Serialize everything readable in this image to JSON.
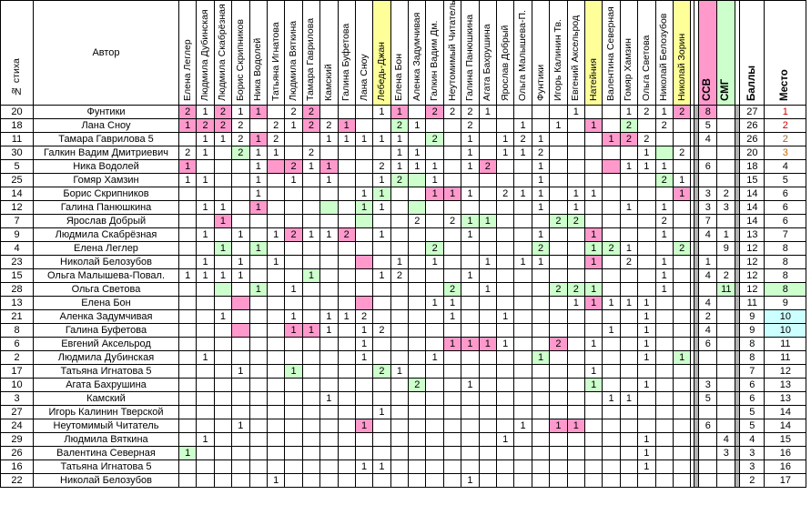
{
  "header": {
    "num_label": "№ стиха",
    "author_label": "Автор",
    "voters": [
      "Елена Леглер",
      "Людмила Дубинская",
      "Людмила Скабрёзная",
      "Борис Скрипников",
      "Ника Водолей",
      "Татьяна Игнатова",
      "Людмила Вяткина",
      "Тамара Гаврилова",
      "Камский",
      "Галина Буфетова",
      "Лана Сноу",
      "Лебедь-Джан",
      "Елена Бон",
      "Аленка Задумчивая",
      "Галкин Вадим Дм.",
      "Неутомимый Читатель",
      "Галина Панюшкина",
      "Агата Бахрушина",
      "Ярослав Добрый",
      "Ольга Малышева-П.",
      "Фунтики",
      "Игорь Калинин Тв.",
      "Евгений Аксельрод",
      "Натейния",
      "Валентина Северная",
      "Гомяр Хамзин",
      "Ольга Светова",
      "Николай Белозубов",
      "Николай Зорин"
    ],
    "ssv_label": "ССВ",
    "smg_label": "СМГ",
    "score_label": "Баллы",
    "place_label": "Место"
  },
  "colors": {
    "pink": "#ff99cc",
    "green": "#ccffcc",
    "yellow": "#ffff99",
    "stripe": "#b3b3b3",
    "place_gold": "#cc0000",
    "place_silver": "#996633",
    "place_bronze": "#cc6600",
    "place_blue": "#0000cc"
  },
  "rows": [
    {
      "num": "20",
      "author": "Фунтики",
      "v": [
        "2",
        "1",
        "2",
        "1",
        "1",
        "",
        "2",
        "2",
        "",
        "",
        "",
        "1",
        "1",
        "",
        "2",
        "2",
        "2",
        "1",
        "",
        "",
        "",
        "",
        "1",
        "",
        "",
        "1",
        "2",
        "1",
        "2"
      ],
      "ssv": "8",
      "smg": "",
      "score": "27",
      "place": "1",
      "hl": {
        "0": "p",
        "2": "p",
        "4": "p",
        "7": "p",
        "12": "p",
        "14": "p",
        "28": "p",
        "ssv": "p"
      },
      "pc": "gold"
    },
    {
      "num": "18",
      "author": "Лана Сноу",
      "v": [
        "1",
        "2",
        "2",
        "2",
        "",
        "2",
        "1",
        "2",
        "2",
        "1",
        "",
        "",
        "2",
        "1",
        "",
        "",
        "2",
        "",
        "",
        "1",
        "",
        "1",
        "",
        "1",
        "",
        "2",
        "",
        "2",
        ""
      ],
      "ssv": "5",
      "smg": "",
      "score": "26",
      "place": "2",
      "hl": {
        "0": "p",
        "1": "p",
        "2": "p",
        "7": "p",
        "9": "p",
        "12": "g",
        "23": "p",
        "25": "g"
      },
      "pc": "gold"
    },
    {
      "num": "11",
      "author": "Тамара Гаврилова 5",
      "v": [
        "",
        "1",
        "1",
        "2",
        "1",
        "2",
        "",
        "",
        "1",
        "1",
        "1",
        "1",
        "1",
        "",
        "2",
        "",
        "1",
        "",
        "1",
        "2",
        "1",
        "",
        "",
        "",
        "1",
        "2",
        "2",
        "",
        ""
      ],
      "ssv": "4",
      "smg": "",
      "score": "26",
      "place": "2",
      "hl": {
        "4": "p",
        "14": "g",
        "24": "p",
        "25": "p"
      },
      "pc": "silver"
    },
    {
      "num": "30",
      "author": "Галкин Вадим Дмитриевич",
      "v": [
        "2",
        "1",
        "",
        "2",
        "1",
        "1",
        "",
        "2",
        "",
        "",
        "",
        "",
        "1",
        "1",
        "",
        "",
        "1",
        "",
        "1",
        "1",
        "2",
        "",
        "",
        "",
        "",
        "",
        "1",
        "",
        "2"
      ],
      "ssv": "",
      "smg": "",
      "score": "20",
      "place": "3",
      "hl": {
        "3": "g",
        "27": "g"
      },
      "pc": "bronze"
    },
    {
      "num": "5",
      "author": "Ника Водолей",
      "v": [
        "1",
        "",
        "",
        "",
        "1",
        "",
        "2",
        "1",
        "1",
        "",
        "",
        "2",
        "1",
        "1",
        "1",
        "",
        "1",
        "2",
        "",
        "",
        "1",
        "",
        "",
        "",
        "",
        "1",
        "1",
        "1",
        ""
      ],
      "ssv": "6",
      "smg": "",
      "score": "18",
      "place": "4",
      "hl": {
        "0": "p",
        "5": "p",
        "6": "p",
        "8": "p",
        "17": "p",
        "24": "p"
      }
    },
    {
      "num": "25",
      "author": "Гомяр Хамзин",
      "v": [
        "1",
        "1",
        "",
        "",
        "1",
        "",
        "1",
        "",
        "1",
        "",
        "",
        "1",
        "2",
        "",
        "1",
        "",
        "",
        "",
        "",
        "",
        "1",
        "",
        "",
        "",
        "",
        "",
        "",
        "2",
        "1"
      ],
      "ssv": "",
      "smg": "",
      "score": "15",
      "place": "5",
      "hl": {
        "12": "g",
        "13": "g",
        "27": "g"
      }
    },
    {
      "num": "14",
      "author": "Борис Скрипников",
      "v": [
        "",
        "",
        "",
        "",
        "1",
        "",
        "",
        "",
        "",
        "",
        "1",
        "1",
        "",
        "",
        "1",
        "1",
        "1",
        "",
        "2",
        "1",
        "1",
        "",
        "1",
        "1",
        "",
        "",
        "",
        "",
        "1"
      ],
      "ssv": "3",
      "smg": "2",
      "score": "14",
      "place": "6",
      "hl": {
        "11": "g",
        "14": "p",
        "15": "p",
        "28": "p",
        "ssv": "w"
      }
    },
    {
      "num": "12",
      "author": "Галина Панюшкина",
      "v": [
        "",
        "1",
        "1",
        "",
        "1",
        "",
        "",
        "",
        "",
        "",
        "1",
        "1",
        "",
        "",
        "",
        "",
        "",
        "",
        "",
        "",
        "1",
        "",
        "1",
        "",
        "",
        "1",
        "",
        "1",
        ""
      ],
      "ssv": "3",
      "smg": "3",
      "score": "14",
      "place": "6",
      "hl": {
        "4": "p",
        "8": "g",
        "10": "g",
        "13": "g"
      }
    },
    {
      "num": "7",
      "author": "Ярослав Добрый",
      "v": [
        "",
        "",
        "1",
        "",
        "",
        "",
        "",
        "",
        "",
        "",
        "",
        "",
        "",
        "2",
        "",
        "2",
        "1",
        "1",
        "",
        "",
        "",
        "2",
        "2",
        "",
        "",
        "",
        "",
        "2",
        ""
      ],
      "ssv": "7",
      "smg": "",
      "score": "14",
      "place": "6",
      "hl": {
        "2": "p",
        "10": "g",
        "16": "g",
        "17": "g",
        "21": "g",
        "22": "g"
      }
    },
    {
      "num": "9",
      "author": "Людмила Скабрёзная",
      "v": [
        "",
        "1",
        "",
        "1",
        "",
        "1",
        "2",
        "1",
        "1",
        "2",
        "",
        "1",
        "",
        "",
        "",
        "",
        "1",
        "",
        "",
        "",
        "1",
        "",
        "",
        "1",
        "",
        "",
        "",
        "1",
        ""
      ],
      "ssv": "4",
      "smg": "1",
      "score": "13",
      "place": "7",
      "hl": {
        "6": "p",
        "9": "p",
        "23": "p"
      }
    },
    {
      "num": "4",
      "author": "Елена Леглер",
      "v": [
        "",
        "",
        "1",
        "",
        "1",
        "",
        "",
        "",
        "",
        "",
        "",
        "",
        "",
        "",
        "2",
        "",
        "",
        "",
        "",
        "",
        "2",
        "",
        "",
        "1",
        "2",
        "1",
        "",
        "",
        "2"
      ],
      "ssv": "",
      "smg": "9",
      "score": "12",
      "place": "8",
      "hl": {
        "2": "g",
        "4": "g",
        "14": "g",
        "20": "g",
        "23": "g",
        "24": "g",
        "28": "g"
      }
    },
    {
      "num": "23",
      "author": "Николай Белозубов",
      "v": [
        "",
        "1",
        "",
        "1",
        "",
        "1",
        "",
        "",
        "",
        "",
        "",
        "",
        "1",
        "",
        "1",
        "",
        "",
        "1",
        "",
        "1",
        "1",
        "",
        "",
        "1",
        "",
        "2",
        "",
        "1",
        ""
      ],
      "ssv": "1",
      "smg": "",
      "score": "12",
      "place": "8",
      "hl": {
        "10": "p",
        "23": "p"
      }
    },
    {
      "num": "15",
      "author": "Ольга Малышева-Повал.",
      "v": [
        "1",
        "1",
        "1",
        "1",
        "",
        "",
        "",
        "1",
        "",
        "",
        "",
        "1",
        "2",
        "",
        "",
        "",
        "1",
        "",
        "",
        "",
        "",
        "",
        "",
        "",
        "",
        "",
        "",
        "1",
        ""
      ],
      "ssv": "4",
      "smg": "2",
      "score": "12",
      "place": "8",
      "hl": {
        "7": "g"
      }
    },
    {
      "num": "28",
      "author": "Ольга Светова",
      "v": [
        "",
        "",
        "",
        "",
        "1",
        "",
        "1",
        "",
        "",
        "",
        "",
        "",
        "",
        "",
        "",
        "2",
        "",
        "1",
        "",
        "",
        "",
        "2",
        "2",
        "1",
        "",
        "",
        "",
        "1",
        ""
      ],
      "ssv": "",
      "smg": "11",
      "score": "12",
      "place": "8",
      "hl": {
        "2": "g",
        "4": "g",
        "15": "g",
        "21": "g",
        "22": "g",
        "23": "g",
        "smg": "g",
        "place": "g"
      }
    },
    {
      "num": "13",
      "author": "Елена Бон",
      "v": [
        "",
        "",
        "",
        "",
        "",
        "",
        "",
        "",
        "",
        "",
        "",
        "",
        "",
        "",
        "1",
        "1",
        "",
        "",
        "",
        "",
        "",
        "",
        "1",
        "1",
        "1",
        "1",
        "1",
        "",
        ""
      ],
      "ssv": "4",
      "smg": "",
      "score": "11",
      "place": "9",
      "hl": {
        "3": "p",
        "10": "p",
        "23": "p"
      }
    },
    {
      "num": "21",
      "author": "Аленка Задумчивая",
      "v": [
        "",
        "",
        "1",
        "",
        "",
        "",
        "1",
        "",
        "1",
        "1",
        "2",
        "",
        "",
        "",
        "",
        "1",
        "",
        "",
        "1",
        "",
        "",
        "",
        "",
        "",
        "",
        "",
        "1",
        "",
        ""
      ],
      "ssv": "2",
      "smg": "",
      "score": "9",
      "place": "10",
      "hl": {
        "place": "b"
      }
    },
    {
      "num": "8",
      "author": "Галина Буфетова",
      "v": [
        "",
        "",
        "",
        "",
        "",
        "",
        "1",
        "1",
        "1",
        "",
        "1",
        "2",
        "",
        "",
        "",
        "",
        "",
        "",
        "",
        "",
        "",
        "",
        "",
        "",
        "1",
        "",
        "1",
        "",
        ""
      ],
      "ssv": "4",
      "smg": "",
      "score": "9",
      "place": "10",
      "hl": {
        "3": "p",
        "6": "p",
        "7": "p",
        "place": "b"
      }
    },
    {
      "num": "6",
      "author": "Евгений Аксельрод",
      "v": [
        "",
        "",
        "",
        "",
        "",
        "",
        "",
        "",
        "",
        "",
        "1",
        "",
        "",
        "",
        "",
        "1",
        "1",
        "1",
        "1",
        "",
        "",
        "2",
        "",
        "1",
        "",
        "",
        "1",
        "",
        ""
      ],
      "ssv": "6",
      "smg": "",
      "score": "8",
      "place": "11",
      "hl": {
        "15": "p",
        "16": "p",
        "17": "p",
        "21": "p"
      }
    },
    {
      "num": "2",
      "author": "Людмила Дубинская",
      "v": [
        "",
        "1",
        "",
        "",
        "",
        "",
        "",
        "",
        "",
        "",
        "1",
        "",
        "",
        "",
        "1",
        "",
        "",
        "",
        "",
        "",
        "1",
        "",
        "",
        "",
        "",
        "",
        "1",
        "",
        "1"
      ],
      "ssv": "",
      "smg": "",
      "score": "8",
      "place": "11",
      "hl": {
        "20": "g",
        "28": "g"
      }
    },
    {
      "num": "17",
      "author": "Татьяна Игнатова 5",
      "v": [
        "",
        "",
        "",
        "1",
        "",
        "",
        "1",
        "",
        "",
        "",
        "",
        "2",
        "1",
        "",
        "",
        "",
        "",
        "",
        "",
        "",
        "",
        "",
        "",
        "1",
        "",
        "",
        "",
        "",
        ""
      ],
      "ssv": "",
      "smg": "",
      "score": "7",
      "place": "12",
      "hl": {
        "6": "g",
        "11": "g"
      }
    },
    {
      "num": "10",
      "author": "Агата Бахрушина",
      "v": [
        "",
        "",
        "",
        "",
        "",
        "",
        "",
        "",
        "",
        "",
        "",
        "",
        "",
        "2",
        "",
        "",
        "1",
        "",
        "",
        "",
        "",
        "",
        "",
        "1",
        "",
        "",
        "1",
        "",
        ""
      ],
      "ssv": "3",
      "smg": "",
      "score": "6",
      "place": "13",
      "hl": {
        "13": "g",
        "23": "g"
      }
    },
    {
      "num": "3",
      "author": "Камский",
      "v": [
        "",
        "",
        "",
        "",
        "",
        "",
        "",
        "",
        "1",
        "",
        "",
        "",
        "",
        "",
        "",
        "",
        "",
        "",
        "",
        "",
        "",
        "",
        "",
        "",
        "1",
        "1",
        "",
        "",
        ""
      ],
      "ssv": "5",
      "smg": "",
      "score": "6",
      "place": "13",
      "hl": {}
    },
    {
      "num": "27",
      "author": "Игорь Калинин Тверской",
      "v": [
        "",
        "",
        "",
        "",
        "",
        "",
        "",
        "",
        "",
        "",
        "",
        "1",
        "",
        "",
        "",
        "",
        "",
        "",
        "",
        "",
        "",
        "",
        "",
        "",
        "",
        "",
        "",
        "",
        ""
      ],
      "ssv": "",
      "smg": "",
      "score": "5",
      "place": "14",
      "hl": {}
    },
    {
      "num": "24",
      "author": "Неутомимый Читатель",
      "v": [
        "",
        "",
        "",
        "1",
        "",
        "",
        "",
        "",
        "",
        "",
        "1",
        "",
        "",
        "",
        "",
        "",
        "",
        "",
        "",
        "1",
        "",
        "1",
        "1",
        "",
        "",
        "",
        "",
        "",
        ""
      ],
      "ssv": "6",
      "smg": "",
      "score": "5",
      "place": "14",
      "hl": {
        "10": "p",
        "21": "p",
        "22": "p"
      }
    },
    {
      "num": "29",
      "author": "Людмила Вяткина",
      "v": [
        "",
        "1",
        "",
        "",
        "",
        "",
        "",
        "",
        "",
        "",
        "",
        "",
        "",
        "",
        "",
        "",
        "",
        "",
        "1",
        "",
        "",
        "",
        "",
        "",
        "",
        "",
        "1",
        "",
        ""
      ],
      "ssv": "",
      "smg": "4",
      "score": "4",
      "place": "15",
      "hl": {}
    },
    {
      "num": "26",
      "author": "Валентина Северная",
      "v": [
        "1",
        "",
        "",
        "",
        "",
        "",
        "",
        "",
        "",
        "",
        "",
        "",
        "",
        "",
        "",
        "",
        "",
        "",
        "",
        "",
        "",
        "",
        "",
        "",
        "",
        "",
        "1",
        "",
        ""
      ],
      "ssv": "",
      "smg": "3",
      "score": "3",
      "place": "16",
      "hl": {
        "0": "g"
      }
    },
    {
      "num": "16",
      "author": "Татьяна Игнатова 5",
      "v": [
        "",
        "",
        "",
        "",
        "",
        "",
        "",
        "",
        "",
        "",
        "1",
        "1",
        "",
        "",
        "",
        "",
        "",
        "",
        "",
        "",
        "",
        "",
        "",
        "",
        "",
        "",
        "1",
        "",
        ""
      ],
      "ssv": "",
      "smg": "",
      "score": "3",
      "place": "16",
      "hl": {}
    },
    {
      "num": "22",
      "author": "Николай Белозубов",
      "v": [
        "",
        "",
        "",
        "",
        "",
        "1",
        "",
        "",
        "",
        "",
        "",
        "",
        "",
        "",
        "",
        "",
        "1",
        "",
        "",
        "",
        "",
        "",
        "",
        "",
        "",
        "",
        "",
        "",
        ""
      ],
      "ssv": "",
      "smg": "",
      "score": "2",
      "place": "17",
      "hl": {}
    }
  ]
}
